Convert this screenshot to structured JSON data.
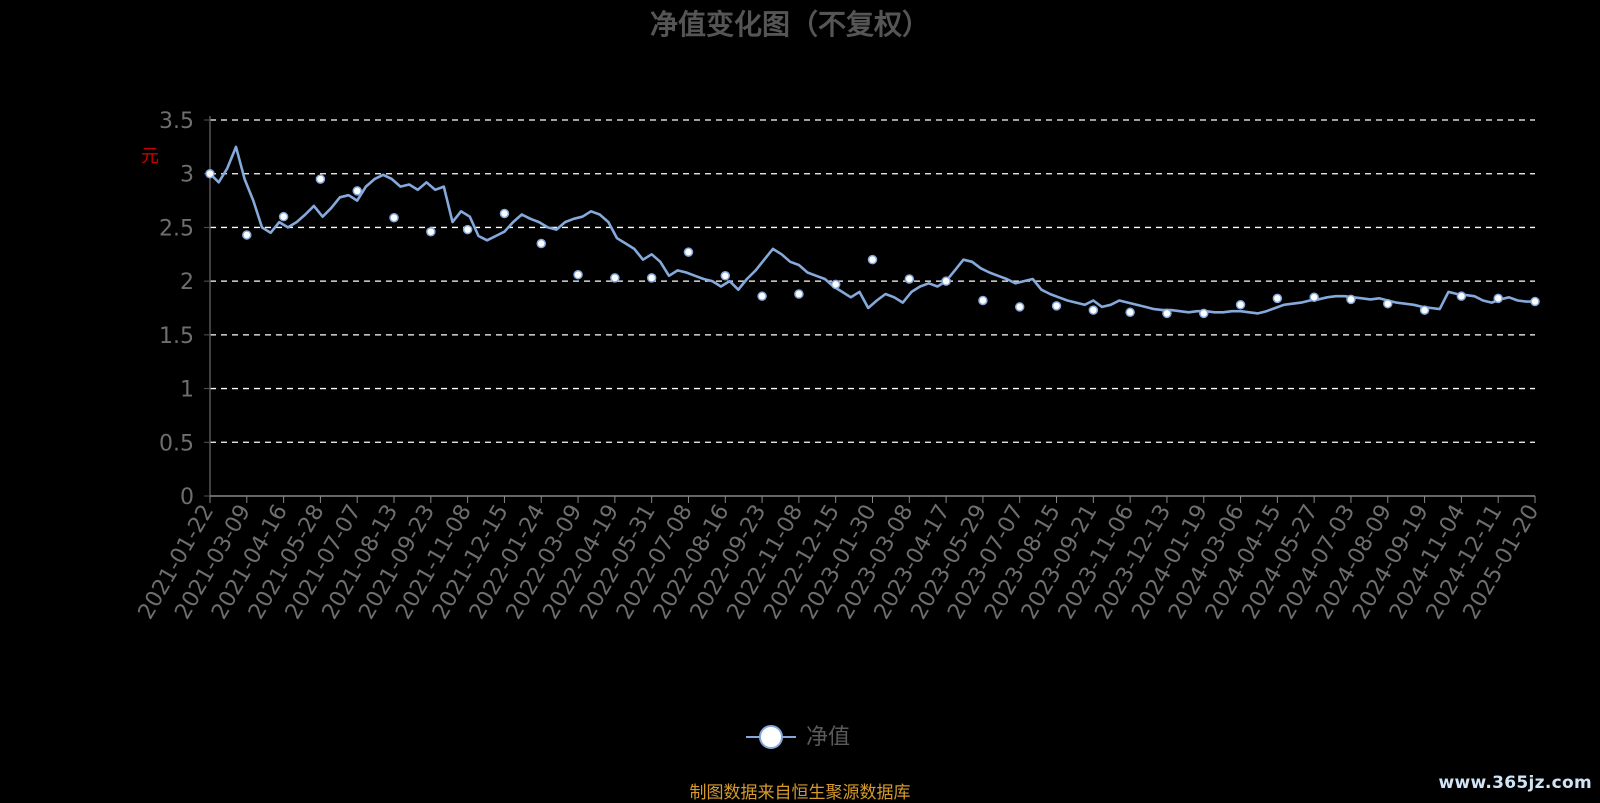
{
  "chart_data": {
    "type": "line",
    "title": "净值变化图（不复权）",
    "ylabel": "元",
    "ylim": [
      0,
      3.5
    ],
    "yticks": [
      "0",
      "0.5",
      "1",
      "1.5",
      "2",
      "2.5",
      "3",
      "3.5"
    ],
    "grid": true,
    "legend_position": "bottom",
    "x_tick_labels": [
      "2021-01-22",
      "2021-03-09",
      "2021-04-16",
      "2021-05-28",
      "2021-07-07",
      "2021-08-13",
      "2021-09-23",
      "2021-11-08",
      "2021-12-15",
      "2022-01-24",
      "2022-03-09",
      "2022-04-19",
      "2022-05-31",
      "2022-07-08",
      "2022-08-16",
      "2022-09-23",
      "2022-11-08",
      "2022-12-15",
      "2023-01-30",
      "2023-03-08",
      "2023-04-17",
      "2023-05-29",
      "2023-07-07",
      "2023-08-15",
      "2023-09-21",
      "2023-11-06",
      "2023-12-13",
      "2024-01-19",
      "2024-03-06",
      "2024-04-15",
      "2024-05-27",
      "2024-07-03",
      "2024-08-09",
      "2024-09-19",
      "2024-11-04",
      "2024-12-11",
      "2025-01-20"
    ],
    "series": [
      {
        "name": "净值",
        "color": "#85a9db",
        "values": [
          3.0,
          2.92,
          3.05,
          3.25,
          2.95,
          2.75,
          2.5,
          2.45,
          2.55,
          2.5,
          2.55,
          2.62,
          2.7,
          2.6,
          2.68,
          2.78,
          2.8,
          2.75,
          2.88,
          2.95,
          2.99,
          2.95,
          2.88,
          2.9,
          2.85,
          2.92,
          2.85,
          2.88,
          2.55,
          2.65,
          2.6,
          2.42,
          2.38,
          2.42,
          2.46,
          2.55,
          2.62,
          2.58,
          2.55,
          2.5,
          2.48,
          2.55,
          2.58,
          2.6,
          2.65,
          2.62,
          2.55,
          2.4,
          2.35,
          2.3,
          2.2,
          2.25,
          2.18,
          2.05,
          2.1,
          2.08,
          2.05,
          2.02,
          2.0,
          1.95,
          2.0,
          1.92,
          2.02,
          2.1,
          2.2,
          2.3,
          2.25,
          2.18,
          2.15,
          2.08,
          2.05,
          2.02,
          1.95,
          1.9,
          1.85,
          1.9,
          1.75,
          1.82,
          1.88,
          1.85,
          1.8,
          1.9,
          1.95,
          1.98,
          1.95,
          2.0,
          2.1,
          2.2,
          2.18,
          2.12,
          2.08,
          2.05,
          2.02,
          1.98,
          2.0,
          2.02,
          1.92,
          1.88,
          1.85,
          1.82,
          1.8,
          1.78,
          1.82,
          1.76,
          1.78,
          1.82,
          1.8,
          1.78,
          1.76,
          1.74,
          1.73,
          1.73,
          1.72,
          1.71,
          1.72,
          1.72,
          1.71,
          1.71,
          1.72,
          1.72,
          1.71,
          1.7,
          1.72,
          1.75,
          1.78,
          1.79,
          1.8,
          1.82,
          1.83,
          1.85,
          1.86,
          1.86,
          1.85,
          1.84,
          1.83,
          1.84,
          1.82,
          1.8,
          1.79,
          1.78,
          1.76,
          1.75,
          1.74,
          1.9,
          1.88,
          1.87,
          1.86,
          1.82,
          1.8,
          1.83,
          1.85,
          1.82,
          1.81,
          1.81
        ],
        "marker_values": [
          3.0,
          2.43,
          2.6,
          2.95,
          2.84,
          2.59,
          2.46,
          2.48,
          2.63,
          2.35,
          2.06,
          2.03,
          2.03,
          2.27,
          2.05,
          1.86,
          1.88,
          1.97,
          2.2,
          2.02,
          2.0,
          1.82,
          1.76,
          1.77,
          1.73,
          1.71,
          1.7,
          1.7,
          1.78,
          1.84,
          1.85,
          1.83,
          1.79,
          1.73,
          1.86,
          1.84,
          1.81
        ]
      }
    ]
  },
  "footer": {
    "source": "制图数据来自恒生聚源数据库",
    "watermark": "www.365jz.com"
  },
  "colors": {
    "background": "#000000",
    "title": "#555555",
    "axis_text": "#6e6e6e",
    "ylabel": "#cc0000",
    "grid": "#ffffff",
    "line": "#85a9db",
    "source": "#d69a2c"
  }
}
